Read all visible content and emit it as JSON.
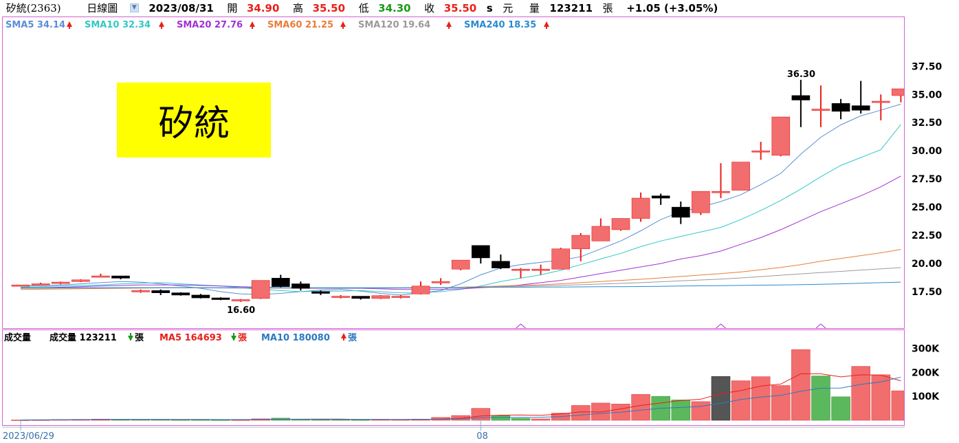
{
  "header": {
    "title": "矽統(2363)",
    "period_label": "日線圖",
    "date": "2023/08/31",
    "open_label": "開",
    "open": "34.90",
    "high_label": "高",
    "high": "35.50",
    "low_label": "低",
    "low": "34.30",
    "close_label": "收",
    "close": "35.50",
    "unit_flag": "s",
    "currency": "元",
    "volume_label": "量",
    "volume": "123211",
    "volume_unit": "張",
    "change": "+1.05 (+3.05%)"
  },
  "stamp_text": "矽統",
  "legend": [
    {
      "label": "SMA5 34.14",
      "color": "#5b8ed6",
      "arrow": "up"
    },
    {
      "label": "SMA10 32.34",
      "color": "#33c7c7",
      "arrow": "up"
    },
    {
      "label": "SMA20 27.76",
      "color": "#a230d8",
      "arrow": "up"
    },
    {
      "label": "SMA60 21.25",
      "color": "#e87d3a",
      "arrow": "up"
    },
    {
      "label": "SMA120 19.64",
      "color": "#9a9a9a",
      "arrow": "up"
    },
    {
      "label": "SMA240 18.35",
      "color": "#2a8ad0",
      "arrow": "up"
    }
  ],
  "volume_legend": {
    "title": "成交量",
    "vol_label": "成交量 123211",
    "vol_arrow": "down",
    "vol_unit": "張",
    "ma5_label": "MA5 164693",
    "ma5_arrow": "down",
    "ma5_unit": "張",
    "ma10_label": "MA10 180080",
    "ma10_arrow": "up",
    "ma10_unit": "張"
  },
  "colors": {
    "up": "#f26d6d",
    "up_edge": "#e8201a",
    "down": "#000000",
    "vol_up": "#f26d6d",
    "vol_down": "#5cb85c",
    "vol_flat": "#555555",
    "ma5v": "#e8201a",
    "ma10v": "#2a7ac0"
  },
  "chart_data": {
    "type": "candlestick",
    "x_tick_labels": [
      {
        "index": 0,
        "label": "2023/06/29"
      },
      {
        "index": 23,
        "label": "08"
      }
    ],
    "y_ticks": [
      17.5,
      20,
      22.5,
      25,
      27.5,
      30,
      32.5,
      35,
      37.5
    ],
    "y_tick_labels": [
      "17.50",
      "20.00",
      "22.50",
      "25.00",
      "27.50",
      "30.00",
      "32.50",
      "35.00",
      "37.50"
    ],
    "ylim": [
      15.0,
      38.8
    ],
    "annotations": [
      {
        "index": 11,
        "value": 16.6,
        "label": "16.60"
      },
      {
        "index": 39,
        "value": 36.3,
        "label": "36.30"
      }
    ],
    "candles": [
      {
        "o": 18.1,
        "h": 18.1,
        "l": 18.1,
        "c": 18.1
      },
      {
        "o": 18.2,
        "h": 18.3,
        "l": 18.1,
        "c": 18.2
      },
      {
        "o": 18.25,
        "h": 18.4,
        "l": 18.15,
        "c": 18.35
      },
      {
        "o": 18.4,
        "h": 18.6,
        "l": 18.35,
        "c": 18.55
      },
      {
        "o": 18.9,
        "h": 19.1,
        "l": 18.8,
        "c": 18.9
      },
      {
        "o": 18.9,
        "h": 18.9,
        "l": 18.6,
        "c": 18.7
      },
      {
        "o": 17.6,
        "h": 17.7,
        "l": 17.4,
        "c": 17.6
      },
      {
        "o": 17.6,
        "h": 17.7,
        "l": 17.2,
        "c": 17.4
      },
      {
        "o": 17.4,
        "h": 17.45,
        "l": 17.15,
        "c": 17.2
      },
      {
        "o": 17.2,
        "h": 17.3,
        "l": 16.9,
        "c": 16.95
      },
      {
        "o": 16.95,
        "h": 17.0,
        "l": 16.75,
        "c": 16.8
      },
      {
        "o": 16.75,
        "h": 16.85,
        "l": 16.6,
        "c": 16.8
      },
      {
        "o": 16.9,
        "h": 18.5,
        "l": 16.85,
        "c": 18.5
      },
      {
        "o": 18.7,
        "h": 19.0,
        "l": 17.9,
        "c": 17.95
      },
      {
        "o": 18.2,
        "h": 18.4,
        "l": 17.6,
        "c": 17.8
      },
      {
        "o": 17.5,
        "h": 17.6,
        "l": 17.2,
        "c": 17.35
      },
      {
        "o": 17.0,
        "h": 17.2,
        "l": 16.9,
        "c": 17.1
      },
      {
        "o": 17.1,
        "h": 17.1,
        "l": 16.8,
        "c": 16.9
      },
      {
        "o": 16.9,
        "h": 17.2,
        "l": 16.85,
        "c": 17.15
      },
      {
        "o": 17.0,
        "h": 17.2,
        "l": 16.9,
        "c": 17.1
      },
      {
        "o": 17.3,
        "h": 18.4,
        "l": 17.25,
        "c": 18.0
      },
      {
        "o": 18.4,
        "h": 18.7,
        "l": 18.1,
        "c": 18.4
      },
      {
        "o": 19.5,
        "h": 20.3,
        "l": 19.4,
        "c": 20.3
      },
      {
        "o": 21.6,
        "h": 21.6,
        "l": 20.0,
        "c": 20.5
      },
      {
        "o": 20.2,
        "h": 20.8,
        "l": 19.5,
        "c": 19.6
      },
      {
        "o": 19.5,
        "h": 19.6,
        "l": 18.7,
        "c": 19.5
      },
      {
        "o": 19.4,
        "h": 19.9,
        "l": 19.0,
        "c": 19.5
      },
      {
        "o": 19.5,
        "h": 21.4,
        "l": 19.5,
        "c": 21.3
      },
      {
        "o": 21.3,
        "h": 22.7,
        "l": 20.2,
        "c": 22.5
      },
      {
        "o": 22.0,
        "h": 24.0,
        "l": 22.0,
        "c": 23.3
      },
      {
        "o": 23.0,
        "h": 24.0,
        "l": 22.9,
        "c": 24.0
      },
      {
        "o": 24.0,
        "h": 26.3,
        "l": 23.7,
        "c": 25.8
      },
      {
        "o": 26.0,
        "h": 26.2,
        "l": 25.2,
        "c": 25.8
      },
      {
        "o": 25.0,
        "h": 25.5,
        "l": 23.5,
        "c": 24.1
      },
      {
        "o": 24.5,
        "h": 26.4,
        "l": 24.3,
        "c": 26.4
      },
      {
        "o": 26.4,
        "h": 28.9,
        "l": 25.8,
        "c": 26.4
      },
      {
        "o": 26.5,
        "h": 29.0,
        "l": 26.5,
        "c": 29.0
      },
      {
        "o": 30.0,
        "h": 30.8,
        "l": 29.2,
        "c": 30.0
      },
      {
        "o": 29.6,
        "h": 33.0,
        "l": 29.5,
        "c": 33.0
      },
      {
        "o": 34.9,
        "h": 36.3,
        "l": 32.1,
        "c": 34.5
      },
      {
        "o": 33.7,
        "h": 35.8,
        "l": 32.1,
        "c": 33.7
      },
      {
        "o": 34.2,
        "h": 34.6,
        "l": 32.8,
        "c": 33.5
      },
      {
        "o": 34.0,
        "h": 36.2,
        "l": 33.3,
        "c": 33.6
      },
      {
        "o": 34.4,
        "h": 35.0,
        "l": 32.7,
        "c": 34.4
      },
      {
        "o": 34.9,
        "h": 35.5,
        "l": 34.3,
        "c": 35.5
      }
    ],
    "series": [
      {
        "name": "SMA5",
        "values": [
          18.0,
          18.05,
          18.1,
          18.2,
          18.3,
          18.4,
          18.35,
          18.2,
          18.0,
          17.8,
          17.5,
          17.3,
          17.25,
          17.35,
          17.5,
          17.65,
          17.7,
          17.55,
          17.35,
          17.2,
          17.4,
          17.6,
          18.2,
          19.0,
          19.6,
          19.9,
          20.1,
          20.3,
          20.6,
          21.3,
          22.0,
          22.9,
          23.9,
          24.6,
          25.0,
          25.5,
          26.1,
          27.0,
          28.0,
          29.7,
          31.2,
          32.3,
          33.1,
          33.6,
          34.14
        ]
      },
      {
        "name": "SMA10",
        "values": [
          17.9,
          17.95,
          18.0,
          18.05,
          18.1,
          18.2,
          18.25,
          18.3,
          18.2,
          18.1,
          18.0,
          17.85,
          17.7,
          17.6,
          17.5,
          17.55,
          17.55,
          17.6,
          17.5,
          17.4,
          17.4,
          17.5,
          17.7,
          18.0,
          18.4,
          18.7,
          19.0,
          19.4,
          19.9,
          20.4,
          20.9,
          21.5,
          22.0,
          22.4,
          22.8,
          23.2,
          23.9,
          24.7,
          25.6,
          26.6,
          27.7,
          28.7,
          29.4,
          30.1,
          32.34
        ]
      },
      {
        "name": "SMA20",
        "values": [
          17.8,
          17.85,
          17.9,
          17.95,
          18.0,
          18.05,
          18.1,
          18.1,
          18.1,
          18.05,
          18.0,
          17.95,
          17.9,
          17.85,
          17.8,
          17.8,
          17.8,
          17.8,
          17.75,
          17.7,
          17.7,
          17.7,
          17.75,
          17.85,
          17.95,
          18.1,
          18.3,
          18.5,
          18.8,
          19.1,
          19.4,
          19.7,
          20.0,
          20.4,
          20.7,
          21.1,
          21.7,
          22.3,
          23.0,
          23.8,
          24.6,
          25.3,
          26.0,
          26.8,
          27.76
        ]
      },
      {
        "name": "SMA60",
        "values": [
          17.7,
          17.72,
          17.74,
          17.76,
          17.78,
          17.8,
          17.82,
          17.84,
          17.85,
          17.85,
          17.84,
          17.83,
          17.82,
          17.82,
          17.82,
          17.83,
          17.83,
          17.84,
          17.84,
          17.84,
          17.85,
          17.86,
          17.9,
          17.95,
          18.0,
          18.05,
          18.12,
          18.2,
          18.3,
          18.4,
          18.5,
          18.6,
          18.72,
          18.85,
          18.98,
          19.1,
          19.25,
          19.45,
          19.65,
          19.9,
          20.2,
          20.45,
          20.7,
          20.95,
          21.25
        ]
      },
      {
        "name": "SMA120",
        "values": [
          17.8,
          17.81,
          17.82,
          17.83,
          17.84,
          17.85,
          17.85,
          17.85,
          17.85,
          17.84,
          17.83,
          17.82,
          17.82,
          17.82,
          17.82,
          17.82,
          17.82,
          17.82,
          17.82,
          17.82,
          17.83,
          17.84,
          17.86,
          17.9,
          17.94,
          17.98,
          18.02,
          18.07,
          18.12,
          18.18,
          18.24,
          18.3,
          18.38,
          18.46,
          18.54,
          18.62,
          18.72,
          18.84,
          18.96,
          19.08,
          19.2,
          19.3,
          19.42,
          19.52,
          19.64
        ]
      },
      {
        "name": "SMA240",
        "values": [
          17.85,
          17.85,
          17.85,
          17.85,
          17.85,
          17.85,
          17.85,
          17.85,
          17.85,
          17.85,
          17.85,
          17.85,
          17.85,
          17.85,
          17.85,
          17.85,
          17.85,
          17.85,
          17.85,
          17.85,
          17.86,
          17.86,
          17.87,
          17.88,
          17.89,
          17.9,
          17.91,
          17.92,
          17.93,
          17.94,
          17.95,
          17.96,
          17.98,
          18.0,
          18.02,
          18.04,
          18.06,
          18.08,
          18.1,
          18.13,
          18.16,
          18.2,
          18.25,
          18.3,
          18.35
        ]
      }
    ],
    "volume": {
      "yticks": [
        100000,
        200000,
        300000
      ],
      "ytick_labels": [
        "100K",
        "200K",
        "300K"
      ],
      "ylim": [
        0,
        330000
      ],
      "bars": [
        {
          "v": 1500,
          "d": "u"
        },
        {
          "v": 2000,
          "d": "u"
        },
        {
          "v": 3000,
          "d": "u"
        },
        {
          "v": 4000,
          "d": "u"
        },
        {
          "v": 5000,
          "d": "u"
        },
        {
          "v": 4000,
          "d": "d"
        },
        {
          "v": 3000,
          "d": "d"
        },
        {
          "v": 3000,
          "d": "d"
        },
        {
          "v": 2500,
          "d": "d"
        },
        {
          "v": 2500,
          "d": "d"
        },
        {
          "v": 2000,
          "d": "d"
        },
        {
          "v": 2000,
          "d": "u"
        },
        {
          "v": 6000,
          "d": "u"
        },
        {
          "v": 9000,
          "d": "d"
        },
        {
          "v": 5000,
          "d": "d"
        },
        {
          "v": 3000,
          "d": "d"
        },
        {
          "v": 3000,
          "d": "d"
        },
        {
          "v": 2500,
          "d": "d"
        },
        {
          "v": 3000,
          "d": "u"
        },
        {
          "v": 3000,
          "d": "u"
        },
        {
          "v": 5000,
          "d": "u"
        },
        {
          "v": 12000,
          "d": "u"
        },
        {
          "v": 20000,
          "d": "u"
        },
        {
          "v": 50000,
          "d": "u"
        },
        {
          "v": 20000,
          "d": "d"
        },
        {
          "v": 8000,
          "d": "d"
        },
        {
          "v": 6000,
          "d": "u"
        },
        {
          "v": 30000,
          "d": "u"
        },
        {
          "v": 62000,
          "d": "u"
        },
        {
          "v": 72000,
          "d": "u"
        },
        {
          "v": 68000,
          "d": "u"
        },
        {
          "v": 108000,
          "d": "u"
        },
        {
          "v": 100000,
          "d": "d"
        },
        {
          "v": 85000,
          "d": "d"
        },
        {
          "v": 78000,
          "d": "u"
        },
        {
          "v": 183000,
          "d": "f"
        },
        {
          "v": 165000,
          "d": "u"
        },
        {
          "v": 182000,
          "d": "u"
        },
        {
          "v": 145000,
          "d": "u"
        },
        {
          "v": 295000,
          "d": "u"
        },
        {
          "v": 185000,
          "d": "d"
        },
        {
          "v": 98000,
          "d": "d"
        },
        {
          "v": 225000,
          "d": "u"
        },
        {
          "v": 190000,
          "d": "u"
        },
        {
          "v": 123211,
          "d": "u"
        }
      ],
      "ma5": [
        1500,
        1750,
        2167,
        2625,
        3100,
        3600,
        3800,
        3800,
        3800,
        3300,
        2800,
        2500,
        3300,
        4400,
        4700,
        5000,
        4800,
        3700,
        3300,
        2900,
        3300,
        5300,
        8600,
        18000,
        21400,
        22000,
        20800,
        26800,
        35200,
        34400,
        47600,
        62000,
        72000,
        82600,
        88000,
        110800,
        124200,
        142600,
        151200,
        194000,
        194000,
        181000,
        189600,
        188600,
        164693
      ],
      "ma10": [
        1500,
        1750,
        2167,
        2625,
        3100,
        3417,
        3357,
        3313,
        3222,
        3150,
        3200,
        3100,
        3400,
        3900,
        3900,
        3800,
        3700,
        3600,
        3650,
        3700,
        4050,
        4300,
        6000,
        10200,
        12000,
        12600,
        12900,
        15600,
        21700,
        28600,
        33900,
        42500,
        50300,
        53500,
        58300,
        71000,
        86600,
        96900,
        103900,
        121400,
        134400,
        134700,
        150000,
        160100,
        180080
      ]
    }
  }
}
